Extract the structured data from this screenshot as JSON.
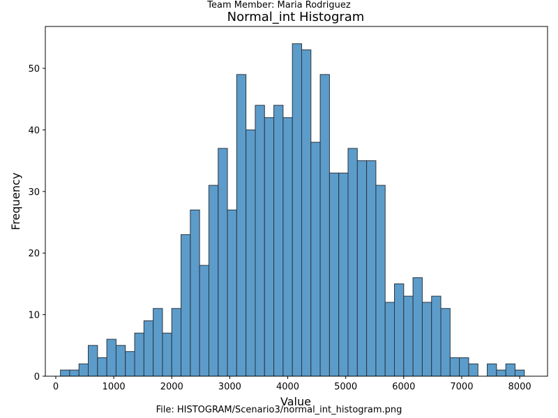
{
  "header": {
    "team_member": "Team Member: Maria Rodriguez"
  },
  "footer": {
    "file_path": "File: HISTOGRAM/Scenario3/normal_int_histogram.png"
  },
  "colors": {
    "bar_fill": "#5c9cca",
    "bar_edge": "#2a3540",
    "axis": "#000000",
    "background": "#ffffff"
  },
  "chart_data": {
    "type": "bar",
    "title": "Normal_int Histogram",
    "xlabel": "Value",
    "ylabel": "Frequency",
    "xlim": [
      -180,
      8480
    ],
    "ylim": [
      0,
      56.8
    ],
    "grid": false,
    "x_ticks": [
      0,
      1000,
      2000,
      3000,
      4000,
      5000,
      6000,
      7000,
      8000
    ],
    "y_ticks": [
      0,
      10,
      20,
      30,
      40,
      50
    ],
    "bin_start": 80,
    "bin_width": 160,
    "values": [
      1,
      1,
      2,
      5,
      3,
      6,
      5,
      4,
      7,
      9,
      11,
      7,
      11,
      23,
      27,
      18,
      31,
      37,
      27,
      49,
      40,
      44,
      42,
      44,
      42,
      54,
      53,
      38,
      49,
      33,
      33,
      37,
      35,
      35,
      31,
      12,
      15,
      13,
      16,
      12,
      13,
      11,
      3,
      3,
      2,
      0,
      2,
      1,
      2,
      1
    ]
  }
}
